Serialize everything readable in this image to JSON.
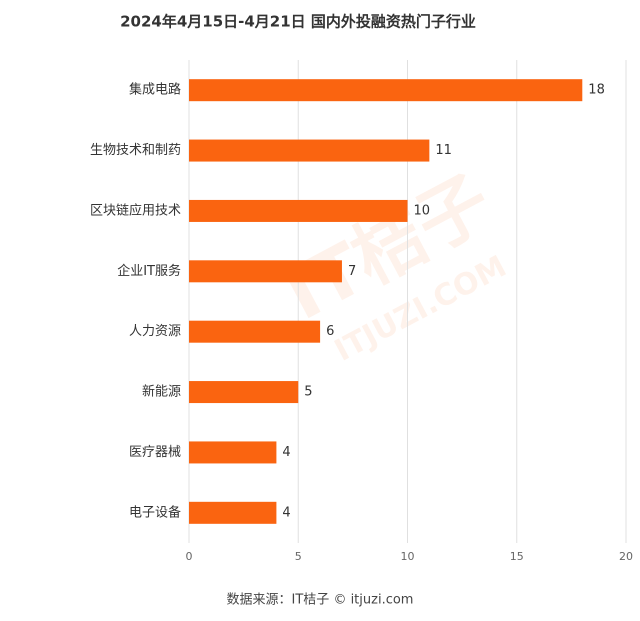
{
  "chart_data": {
    "type": "bar",
    "orientation": "horizontal",
    "title": "2024年4月15日-4月21日 国内外投融资热门子行业",
    "categories": [
      "集成电路",
      "生物技术和制药",
      "区块链应用技术",
      "企业IT服务",
      "人力资源",
      "新能源",
      "医疗器械",
      "电子设备"
    ],
    "values": [
      18,
      11,
      10,
      7,
      6,
      5,
      4,
      4
    ],
    "color": "#fa6410",
    "xlim": [
      0,
      20
    ],
    "xticks": [
      0,
      5,
      10,
      15,
      20
    ],
    "grid": true,
    "source": "数据来源：IT桔子 © itjuzi.com",
    "watermark": [
      "IT桔子",
      "ITJUZI.COM"
    ]
  }
}
